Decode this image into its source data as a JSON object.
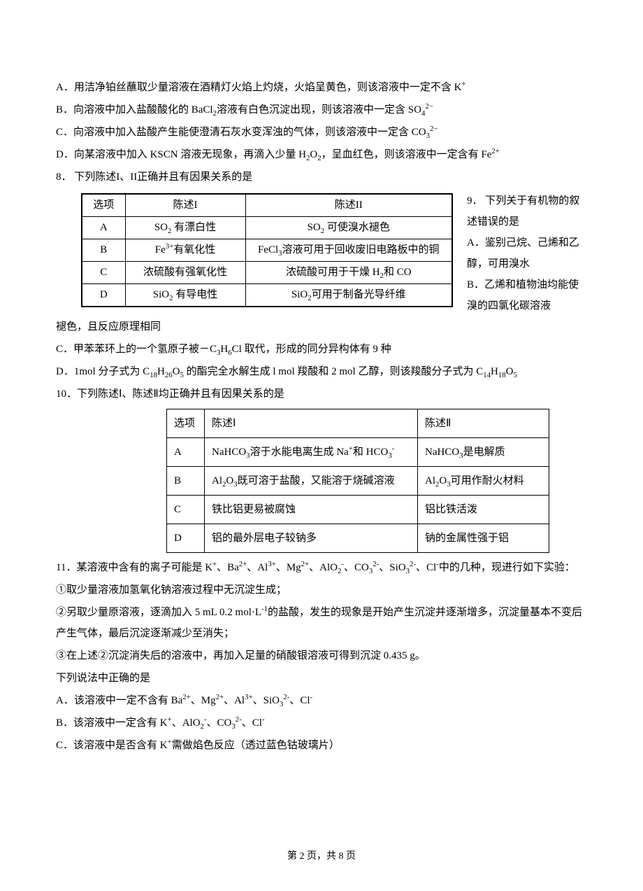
{
  "optA": "A．用洁净铂丝蘸取少量溶液在酒精灯火焰上灼烧，火焰呈黄色，则该溶液中一定不含 K⁺",
  "optB": "B．向溶液中加入盐酸酸化的 BaCl₂溶液有白色沉淀出现，则该溶液中一定含 SO₄²⁻",
  "optC": "C．向溶液中加入盐酸产生能使澄清石灰水变浑浊的气体，则该溶液中一定含 CO₃²⁻",
  "optD": "D．向某溶液中加入 KSCN 溶液无现象，再滴入少量 H₂O₂，呈血红色，则该溶液中一定含有 Fe²⁺",
  "q8": "8． 下列陈述I、II正确并且有因果关系的是",
  "t1": {
    "h1": "选项",
    "h2": "陈述I",
    "h3": "陈述II",
    "rows": [
      {
        "a": "A",
        "b": "SO₂ 有漂白性",
        "c": "SO₂ 可使溴水褪色"
      },
      {
        "a": "B",
        "b": "Fe³⁺有氧化性",
        "c": "FeCl₃溶液可用于回收废旧电路板中的铜"
      },
      {
        "a": "C",
        "b": "浓硫酸有强氧化性",
        "c": "浓硫酸可用于干燥 H₂和 CO"
      },
      {
        "a": "D",
        "b": "SiO₂ 有导电性",
        "c": "SiO₂可用于制备光导纤维"
      }
    ]
  },
  "q9a": "9． 下列关于有机物的叙述错误的是",
  "q9b": "A．鉴别己烷、己烯和乙醇，可用溴水",
  "q9c": "B．乙烯和植物油均能使溴的四氯化碳溶液",
  "q9cont": "褪色，且反应原理相同",
  "q9C": "C．甲苯苯环上的一个氢原子被－C₃H₆Cl 取代，形成的同分异构体有 9 种",
  "q9D": "D．1mol 分子式为 C₁₈H₂₆O₅ 的酯完全水解生成 l mol  羧酸和 2 mol 乙醇，则该羧酸分子式为 C₁₄H₁₈O₅",
  "q10": "10．下列陈述Ⅰ、陈述Ⅱ均正确并且有因果关系的是",
  "t2": {
    "h1": "选项",
    "h2": "陈述Ⅰ",
    "h3": "陈述Ⅱ",
    "rows": [
      {
        "a": "A",
        "b": "NaHCO₃溶于水能电离生成 Na⁺和 HCO₃⁻",
        "c": "NaHCO₃是电解质"
      },
      {
        "a": "B",
        "b": "Al₂O₃既可溶于盐酸，又能溶于烧碱溶液",
        "c": "Al₂O₃可用作耐火材料"
      },
      {
        "a": "C",
        "b": "铁比铝更易被腐蚀",
        "c": "铝比铁活泼"
      },
      {
        "a": "D",
        "b": "铝的最外层电子较钠多",
        "c": "钠的金属性强于铝"
      }
    ]
  },
  "q11a": "11．某溶液中含有的离子可能是 K⁺、Ba²⁺、Al³⁺、Mg²⁺、AlO₂⁻、CO₃²⁻、SiO₃²⁻、Cl⁻中的几种，现进行如下实验：",
  "q11b": "①取少量溶液加氢氧化钠溶液过程中无沉淀生成；",
  "q11c": "②另取少量原溶液，逐滴加入 5 mL 0.2 mol·L⁻¹的盐酸，发生的现象是开始产生沉淀并逐渐增多，沉淀量基本不变后产生气体，最后沉淀逐渐减少至消失；",
  "q11d": "③在上述②沉淀消失后的溶液中，再加入足量的硝酸银溶液可得到沉淀 0.435 g。",
  "q11e": "下列说法中正确的是",
  "q11A": "A．该溶液中一定不含有 Ba²⁺、Mg²⁺、Al³⁺、SiO₃²⁻、Cl⁻",
  "q11B": "B．该溶液中一定含有 K⁺、AlO₂⁻、CO₃²⁻、Cl⁻",
  "q11C": "C．该溶液中是否含有 K⁺需做焰色反应（透过蓝色钴玻璃片）",
  "footer": "第 2 页，共 8 页"
}
